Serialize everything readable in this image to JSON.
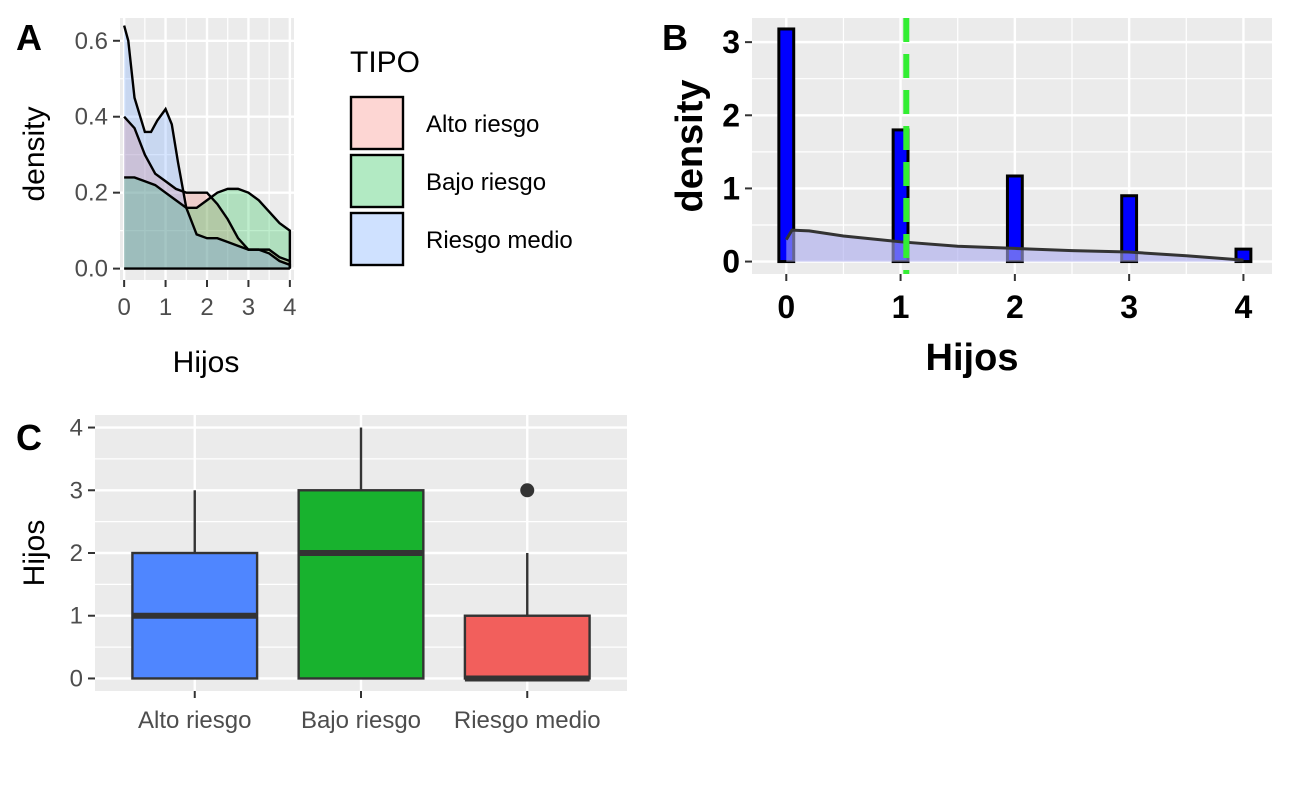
{
  "chart_data": [
    {
      "panel_tag": "A",
      "type": "area",
      "xlabel": "Hijos",
      "ylabel": "density",
      "xlim": [
        -0.1,
        4.1
      ],
      "ylim": [
        -0.03,
        0.66
      ],
      "x_ticks": [
        0,
        1,
        2,
        3,
        4
      ],
      "y_ticks": [
        "0.0",
        "0.2",
        "0.4",
        "0.6"
      ],
      "y_tick_values": [
        0,
        0.2,
        0.4,
        0.6
      ],
      "grid": true,
      "legend": {
        "title": "TIPO",
        "placement": "right",
        "entries": [
          "Alto riesgo",
          "Bajo riesgo",
          "Riesgo medio"
        ],
        "colors": [
          "#F8766D",
          "#00BA38",
          "#619CFF"
        ]
      },
      "series": [
        {
          "name": "Alto riesgo",
          "color": "#F8766D",
          "x": [
            0,
            0.25,
            0.5,
            0.75,
            1,
            1.25,
            1.5,
            1.75,
            2,
            2.25,
            2.5,
            2.75,
            3,
            3.25,
            3.5,
            3.75,
            4
          ],
          "y": [
            0.4,
            0.37,
            0.3,
            0.25,
            0.23,
            0.21,
            0.2,
            0.2,
            0.2,
            0.17,
            0.13,
            0.08,
            0.05,
            0.05,
            0.05,
            0.03,
            0.02
          ]
        },
        {
          "name": "Bajo riesgo",
          "color": "#00BA38",
          "x": [
            0,
            0.25,
            0.5,
            0.75,
            1,
            1.25,
            1.5,
            1.75,
            2,
            2.25,
            2.5,
            2.75,
            3,
            3.25,
            3.5,
            3.75,
            4
          ],
          "y": [
            0.24,
            0.24,
            0.23,
            0.22,
            0.2,
            0.18,
            0.16,
            0.16,
            0.18,
            0.2,
            0.21,
            0.21,
            0.2,
            0.18,
            0.15,
            0.12,
            0.1
          ]
        },
        {
          "name": "Riesgo medio",
          "color": "#619CFF",
          "x": [
            0,
            0.1,
            0.25,
            0.5,
            0.65,
            0.8,
            1,
            1.15,
            1.3,
            1.5,
            1.75,
            2,
            2.25,
            2.5,
            2.75,
            3,
            3.25,
            3.5,
            3.75,
            4
          ],
          "y": [
            0.64,
            0.6,
            0.45,
            0.36,
            0.36,
            0.39,
            0.42,
            0.38,
            0.28,
            0.16,
            0.09,
            0.08,
            0.08,
            0.07,
            0.06,
            0.05,
            0.05,
            0.04,
            0.02,
            0.01
          ]
        }
      ]
    },
    {
      "panel_tag": "B",
      "type": "bar",
      "xlabel": "Hijos",
      "ylabel": "density",
      "xlim": [
        -0.3,
        4.25
      ],
      "ylim": [
        -0.17,
        3.33
      ],
      "x_ticks": [
        0,
        1,
        2,
        3,
        4
      ],
      "y_ticks": [
        0,
        1,
        2,
        3
      ],
      "grid": true,
      "bar_color": "#0000FF",
      "bar_width": 0.13,
      "bars": [
        {
          "x": 0,
          "y": 3.18
        },
        {
          "x": 1,
          "y": 1.8
        },
        {
          "x": 2,
          "y": 1.17
        },
        {
          "x": 3,
          "y": 0.9
        },
        {
          "x": 4,
          "y": 0.17
        }
      ],
      "density_curve": {
        "color": "#aaaaee",
        "x": [
          0,
          0.05,
          0.2,
          0.5,
          1,
          1.5,
          2,
          2.5,
          3,
          3.5,
          4
        ],
        "y": [
          0.3,
          0.43,
          0.42,
          0.35,
          0.27,
          0.21,
          0.18,
          0.15,
          0.13,
          0.08,
          0.02
        ]
      },
      "mean_line": {
        "x": 1.05,
        "color": "#33EE33"
      }
    },
    {
      "panel_tag": "C",
      "type": "box",
      "xlabel": "",
      "ylabel": "Hijos",
      "ylim": [
        -0.2,
        4.2
      ],
      "y_ticks": [
        0,
        1,
        2,
        3,
        4
      ],
      "grid": true,
      "categories": [
        "Alto riesgo",
        "Bajo riesgo",
        "Riesgo medio"
      ],
      "boxes": [
        {
          "name": "Alto riesgo",
          "min": 0,
          "q1": 0,
          "median": 1,
          "q3": 2,
          "max": 3,
          "outliers": [],
          "color": "#4F86FF"
        },
        {
          "name": "Bajo riesgo",
          "min": 0,
          "q1": 0,
          "median": 2,
          "q3": 3,
          "max": 4,
          "outliers": [],
          "color": "#18B22E"
        },
        {
          "name": "Riesgo medio",
          "min": 0,
          "q1": 0,
          "median": 0,
          "q3": 1,
          "max": 2,
          "outliers": [
            3
          ],
          "color": "#F25F5C"
        }
      ]
    }
  ]
}
